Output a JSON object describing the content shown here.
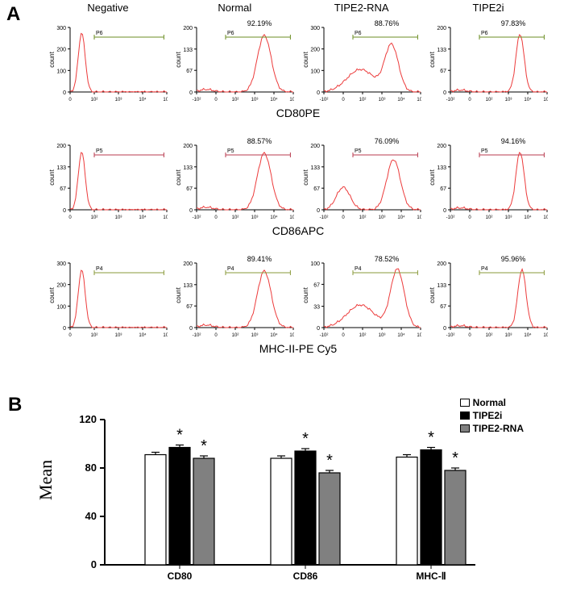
{
  "panelLabels": {
    "A": "A",
    "B": "B"
  },
  "columns": [
    "Negative",
    "Normal",
    "TIPE2-RNA",
    "TIPE2i"
  ],
  "rowMarkers": [
    "CD80PE",
    "CD86APC",
    "MHC-II-PE Cy5"
  ],
  "histograms": {
    "yLabel": "count",
    "xTicks": [
      "0",
      "10²",
      "10³",
      "10⁴",
      "10⁵"
    ],
    "xTicksNeg": [
      "-10²",
      "0",
      "10²",
      "10³",
      "10⁴",
      "10⁵"
    ],
    "curveColor": "#ec3b3b",
    "axisColor": "#000000",
    "gateColors": {
      "P4": "#8a9a3a",
      "P5": "#b83b4f",
      "P6": "#6b8e23"
    },
    "rows": [
      {
        "gateName": "P6",
        "cells": [
          {
            "yMax": 300,
            "percent": null,
            "peakX": 0.12,
            "peakH": 0.92,
            "spread": "narrow"
          },
          {
            "yMax": 200,
            "percent": "92.19%",
            "peakX": 0.7,
            "peakH": 0.88,
            "spread": "mid"
          },
          {
            "yMax": 300,
            "percent": "88.76%",
            "peakX": 0.7,
            "peakH": 0.72,
            "spread": "broad"
          },
          {
            "yMax": 200,
            "percent": "97.83%",
            "peakX": 0.72,
            "peakH": 0.9,
            "spread": "narrow-high"
          }
        ]
      },
      {
        "gateName": "P5",
        "cells": [
          {
            "yMax": 200,
            "percent": null,
            "peakX": 0.12,
            "peakH": 0.9,
            "spread": "narrow"
          },
          {
            "yMax": 200,
            "percent": "88.57%",
            "peakX": 0.7,
            "peakH": 0.88,
            "spread": "mid"
          },
          {
            "yMax": 200,
            "percent": "76.09%",
            "peakX": 0.72,
            "peakH": 0.78,
            "spread": "bimodal"
          },
          {
            "yMax": 200,
            "percent": "94.16%",
            "peakX": 0.72,
            "peakH": 0.9,
            "spread": "narrow-high"
          }
        ]
      },
      {
        "gateName": "P4",
        "cells": [
          {
            "yMax": 300,
            "percent": null,
            "peakX": 0.12,
            "peakH": 0.9,
            "spread": "narrow"
          },
          {
            "yMax": 200,
            "percent": "89.41%",
            "peakX": 0.7,
            "peakH": 0.88,
            "spread": "mid"
          },
          {
            "yMax": 100,
            "percent": "78.52%",
            "peakX": 0.76,
            "peakH": 0.9,
            "spread": "broad"
          },
          {
            "yMax": 200,
            "percent": "95.96%",
            "peakX": 0.74,
            "peakH": 0.9,
            "spread": "narrow-high"
          }
        ]
      }
    ]
  },
  "barChart": {
    "yLabel": "Mean",
    "ylim": [
      0,
      120
    ],
    "ytickStep": 40,
    "categories": [
      "CD80",
      "CD86",
      "MHC-Ⅱ"
    ],
    "series": [
      {
        "name": "Normal",
        "color": "#ffffff",
        "values": [
          91,
          88,
          89
        ]
      },
      {
        "name": "TIPE2i",
        "color": "#000000",
        "values": [
          97,
          94,
          95
        ]
      },
      {
        "name": "TIPE2-RNA",
        "color": "#808080",
        "values": [
          88,
          76,
          78
        ]
      }
    ],
    "errorBar": 2,
    "significance": "*",
    "barWidth": 26,
    "barGap": 4,
    "groupGap": 70,
    "axisColor": "#000000",
    "font": "sans-serif"
  }
}
